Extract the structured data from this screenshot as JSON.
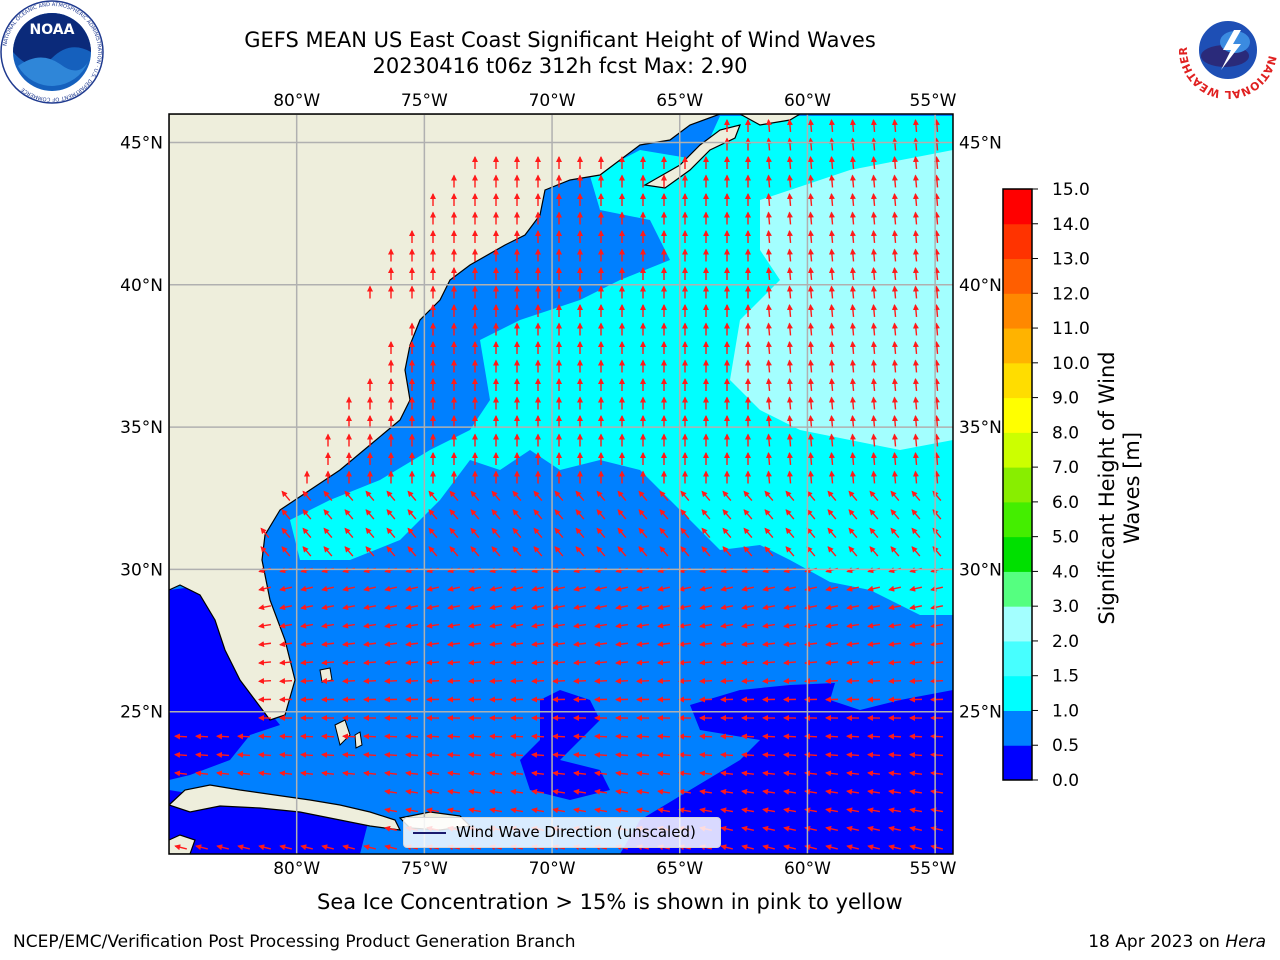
{
  "title": {
    "line1": "GEFS MEAN US East Coast Significant Height of Wind Waves",
    "line2": "20230416 t06z 312h fcst   Max: 2.90"
  },
  "axes": {
    "lon_ticks": [
      "80°W",
      "75°W",
      "70°W",
      "65°W",
      "60°W",
      "55°W"
    ],
    "lon_values": [
      -80,
      -75,
      -70,
      -65,
      -60,
      -55
    ],
    "lat_ticks": [
      "45°N",
      "40°N",
      "35°N",
      "30°N",
      "25°N"
    ],
    "lat_values": [
      45,
      40,
      35,
      30,
      25
    ],
    "lon_range": [
      -85,
      -54.3
    ],
    "lat_range": [
      20,
      46
    ]
  },
  "colorbar": {
    "label_line1": "Significant Height of Wind",
    "label_line2": "Waves [m]",
    "ticks": [
      "0.0",
      "0.5",
      "1.0",
      "1.5",
      "2.0",
      "3.0",
      "4.0",
      "5.0",
      "6.0",
      "7.0",
      "8.0",
      "9.0",
      "10.0",
      "11.0",
      "12.0",
      "13.0",
      "14.0",
      "15.0"
    ],
    "colors": [
      "#0000ff",
      "#0080ff",
      "#00ffff",
      "#47ffff",
      "#a3ffff",
      "#55ff80",
      "#00e000",
      "#44ee00",
      "#88ee00",
      "#ccff00",
      "#ffff00",
      "#ffdd00",
      "#ffb300",
      "#ff8800",
      "#ff5e00",
      "#ff3300",
      "#ff0000"
    ]
  },
  "legend": {
    "label": "Wind Wave Direction (unscaled)"
  },
  "note": "Sea Ice Concentration > 15% is shown in pink to yellow",
  "footer": {
    "left": "NCEP/EMC/Verification Post Processing Product Generation Branch",
    "date": "18 Apr 2023 on ",
    "machine": "Hera"
  },
  "logos": {
    "left_text": "NOAA",
    "left_ring": "NATIONAL OCEANIC AND ATMOSPHERIC ADMINISTRATION · U.S. DEPARTMENT OF COMMERCE",
    "right_ring": "NATIONAL WEATHER SERVICE"
  },
  "colors": {
    "land": "#eeeedc",
    "grid": "#b0b0b0",
    "arrow": "#ff1a1a",
    "coast": "#000000"
  }
}
